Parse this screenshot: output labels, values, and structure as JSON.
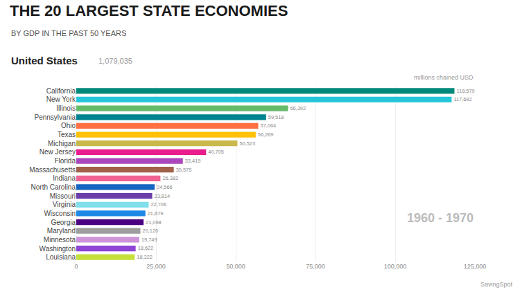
{
  "chart_data": {
    "type": "bar",
    "orientation": "horizontal",
    "title": "THE 20 LARGEST STATE ECONOMIES",
    "subtitle": "BY GDP IN THE PAST 50 YEARS",
    "annotations": [
      "United States",
      "1,079,035",
      "millions chained USD",
      "1960 - 1970",
      "SavingSpot"
    ],
    "categories": [
      "California",
      "New York",
      "Illinois",
      "Pennsylvania",
      "Ohio",
      "Texas",
      "Michigan",
      "New Jersey",
      "Florida",
      "Massachusetts",
      "Indiana",
      "North Carolina",
      "Missouri",
      "Virginia",
      "Wisconsin",
      "Georgia",
      "Maryland",
      "Minnesota",
      "Washington",
      "Louisiana"
    ],
    "values": [
      118579,
      117692,
      66392,
      59518,
      57064,
      56269,
      50523,
      40705,
      33419,
      30575,
      26382,
      24566,
      23814,
      22706,
      21679,
      21098,
      20120,
      19749,
      18622,
      18322
    ],
    "value_labels": [
      "118,579",
      "117,692",
      "66,392",
      "59,518",
      "57,064",
      "56,269",
      "50,523",
      "40,705",
      "33,419",
      "30,575",
      "26,382",
      "24,566",
      "23,814",
      "22,706",
      "21,679",
      "21,098",
      "20,120",
      "19,749",
      "18,622",
      "18,322"
    ],
    "colors": [
      "#00897B",
      "#26C6DA",
      "#66BB6A",
      "#00838F",
      "#FF7043",
      "#FFC107",
      "#C9B84C",
      "#E91E8C",
      "#AB47BC",
      "#A1614A",
      "#F06292",
      "#1565C0",
      "#6A3DA8",
      "#80DEEA",
      "#1E88E5",
      "#4A0080",
      "#9E9E9E",
      "#CE93D8",
      "#8E44D4",
      "#C6E03A"
    ],
    "data_labels": true,
    "xlim": [
      0,
      125000
    ],
    "xticks": [
      0,
      {
        "value": 25000,
        "label": "25,000"
      },
      {
        "value": 50000,
        "label": "50,000"
      },
      {
        "value": 75000,
        "label": "75,000"
      },
      {
        "value": 100000,
        "label": "100,000"
      },
      {
        "value": 125000,
        "label": "125,000"
      }
    ],
    "grid": true
  }
}
